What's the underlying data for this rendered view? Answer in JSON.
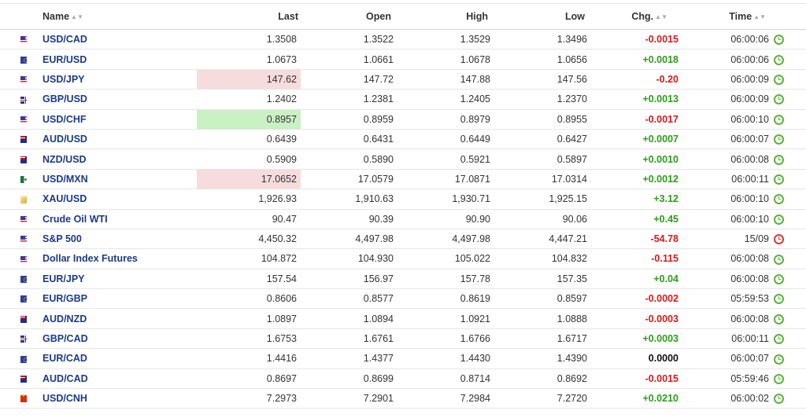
{
  "columns": {
    "name": "Name",
    "last": "Last",
    "open": "Open",
    "high": "High",
    "low": "Low",
    "chg": "Chg.",
    "time": "Time"
  },
  "colors": {
    "up": "#2b9d19",
    "down": "#d81919",
    "link": "#1a3a8a",
    "highlight_red": "#f6dcdc",
    "highlight_green": "#c9f1c4"
  },
  "rows": [
    {
      "flag": "us-flag-icon",
      "name": "USD/CAD",
      "last": "1.3508",
      "open": "1.3522",
      "high": "1.3529",
      "low": "1.3496",
      "chg": "-0.0015",
      "time": "06:00:06",
      "dir": "down",
      "hl": "",
      "clock": "open"
    },
    {
      "flag": "eu-flag-icon",
      "name": "EUR/USD",
      "last": "1.0673",
      "open": "1.0661",
      "high": "1.0678",
      "low": "1.0656",
      "chg": "+0.0018",
      "time": "06:00:06",
      "dir": "up",
      "hl": "",
      "clock": "open"
    },
    {
      "flag": "us-flag-icon",
      "name": "USD/JPY",
      "last": "147.62",
      "open": "147.72",
      "high": "147.88",
      "low": "147.56",
      "chg": "-0.20",
      "time": "06:00:09",
      "dir": "down",
      "hl": "red",
      "clock": "open"
    },
    {
      "flag": "gb-flag-icon",
      "name": "GBP/USD",
      "last": "1.2402",
      "open": "1.2381",
      "high": "1.2405",
      "low": "1.2370",
      "chg": "+0.0013",
      "time": "06:00:09",
      "dir": "up",
      "hl": "",
      "clock": "open"
    },
    {
      "flag": "us-flag-icon",
      "name": "USD/CHF",
      "last": "0.8957",
      "open": "0.8959",
      "high": "0.8979",
      "low": "0.8955",
      "chg": "-0.0017",
      "time": "06:00:10",
      "dir": "down",
      "hl": "green",
      "clock": "open"
    },
    {
      "flag": "au-flag-icon",
      "name": "AUD/USD",
      "last": "0.6439",
      "open": "0.6431",
      "high": "0.6449",
      "low": "0.6427",
      "chg": "+0.0007",
      "time": "06:00:07",
      "dir": "up",
      "hl": "",
      "clock": "open"
    },
    {
      "flag": "nz-flag-icon",
      "name": "NZD/USD",
      "last": "0.5909",
      "open": "0.5890",
      "high": "0.5921",
      "low": "0.5897",
      "chg": "+0.0010",
      "time": "06:00:08",
      "dir": "up",
      "hl": "",
      "clock": "open"
    },
    {
      "flag": "mx-flag-icon",
      "name": "USD/MXN",
      "last": "17.0652",
      "open": "17.0579",
      "high": "17.0871",
      "low": "17.0314",
      "chg": "+0.0012",
      "time": "06:00:11",
      "dir": "up",
      "hl": "red",
      "clock": "open"
    },
    {
      "flag": "gold-flag-icon",
      "name": "XAU/USD",
      "last": "1,926.93",
      "open": "1,910.63",
      "high": "1,930.71",
      "low": "1,925.15",
      "chg": "+3.12",
      "time": "06:00:10",
      "dir": "up",
      "hl": "",
      "clock": "open"
    },
    {
      "flag": "us-flag-icon",
      "name": "Crude Oil WTI",
      "last": "90.47",
      "open": "90.39",
      "high": "90.90",
      "low": "90.06",
      "chg": "+0.45",
      "time": "06:00:10",
      "dir": "up",
      "hl": "",
      "clock": "open"
    },
    {
      "flag": "us-flag-icon",
      "name": "S&P 500",
      "last": "4,450.32",
      "open": "4,497.98",
      "high": "4,497.98",
      "low": "4,447.21",
      "chg": "-54.78",
      "time": "15/09",
      "dir": "down",
      "hl": "",
      "clock": "closed"
    },
    {
      "flag": "us-flag-icon",
      "name": "Dollar Index Futures",
      "last": "104.872",
      "open": "104.930",
      "high": "105.022",
      "low": "104.832",
      "chg": "-0.115",
      "time": "06:00:08",
      "dir": "down",
      "hl": "",
      "clock": "open"
    },
    {
      "flag": "eu-flag-icon",
      "name": "EUR/JPY",
      "last": "157.54",
      "open": "156.97",
      "high": "157.78",
      "low": "157.35",
      "chg": "+0.04",
      "time": "06:00:08",
      "dir": "up",
      "hl": "",
      "clock": "open"
    },
    {
      "flag": "eu-flag-icon",
      "name": "EUR/GBP",
      "last": "0.8606",
      "open": "0.8577",
      "high": "0.8619",
      "low": "0.8597",
      "chg": "-0.0002",
      "time": "05:59:53",
      "dir": "down",
      "hl": "",
      "clock": "open"
    },
    {
      "flag": "au-flag-icon",
      "name": "AUD/NZD",
      "last": "1.0897",
      "open": "1.0894",
      "high": "1.0921",
      "low": "1.0888",
      "chg": "-0.0003",
      "time": "06:00:08",
      "dir": "down",
      "hl": "",
      "clock": "open"
    },
    {
      "flag": "gb-flag-icon",
      "name": "GBP/CAD",
      "last": "1.6753",
      "open": "1.6761",
      "high": "1.6766",
      "low": "1.6717",
      "chg": "+0.0003",
      "time": "06:00:11",
      "dir": "up",
      "hl": "",
      "clock": "open"
    },
    {
      "flag": "eu-flag-icon",
      "name": "EUR/CAD",
      "last": "1.4416",
      "open": "1.4377",
      "high": "1.4430",
      "low": "1.4390",
      "chg": "0.0000",
      "time": "06:00:07",
      "dir": "flat",
      "hl": "",
      "clock": "open"
    },
    {
      "flag": "au-flag-icon",
      "name": "AUD/CAD",
      "last": "0.8697",
      "open": "0.8699",
      "high": "0.8714",
      "low": "0.8692",
      "chg": "-0.0015",
      "time": "05:59:46",
      "dir": "down",
      "hl": "",
      "clock": "open"
    },
    {
      "flag": "cn-flag-icon",
      "name": "USD/CNH",
      "last": "7.2973",
      "open": "7.2901",
      "high": "7.2984",
      "low": "7.2720",
      "chg": "+0.0210",
      "time": "06:00:02",
      "dir": "up",
      "hl": "",
      "clock": "open"
    }
  ]
}
